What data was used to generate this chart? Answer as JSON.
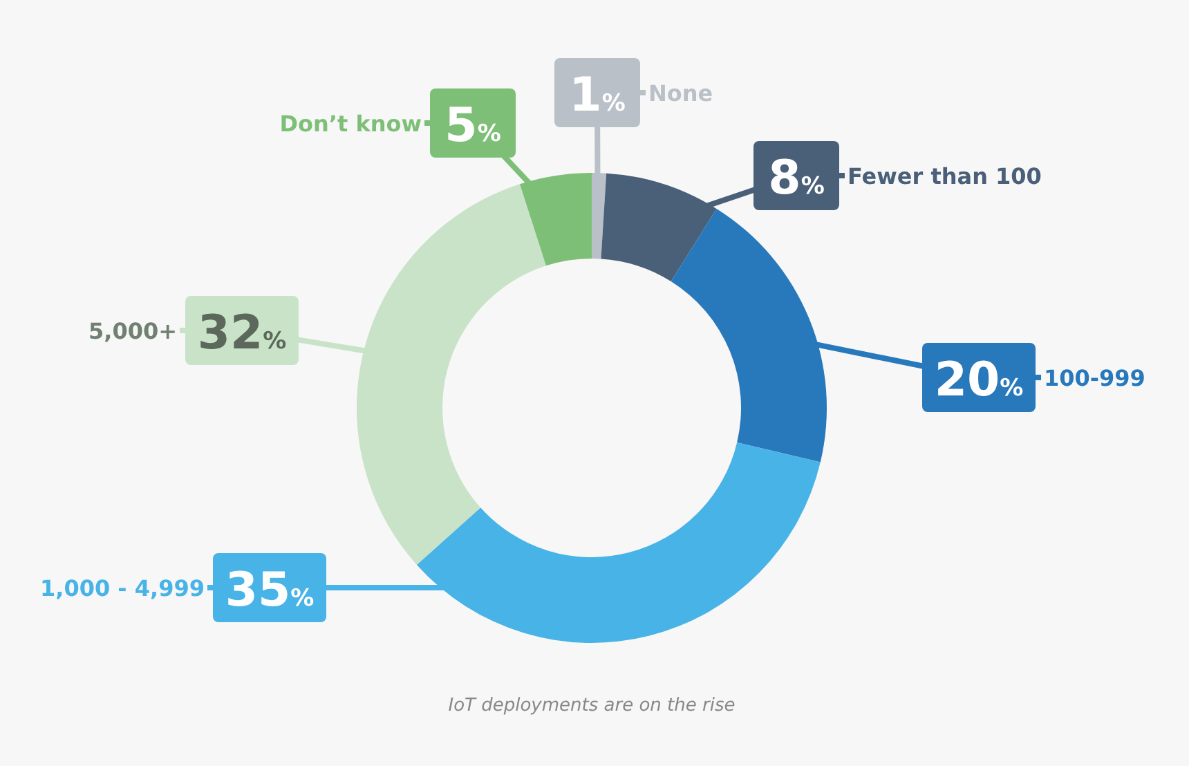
{
  "chart_data": {
    "type": "donut",
    "categories": [
      "None",
      "Fewer than 100",
      "100-999",
      "1,000 - 4,999",
      "5,000+",
      "Don’t know"
    ],
    "values": [
      1,
      8,
      20,
      35,
      32,
      5
    ],
    "colors": [
      "#b9c0c7",
      "#4a5f78",
      "#2878bc",
      "#48b3e6",
      "#c8e3c8",
      "#7dbf77"
    ],
    "value_labels": [
      "1%",
      "8%",
      "20%",
      "35%",
      "32%",
      "5%"
    ],
    "legend": false,
    "annotations": [
      "IoT deployments are on the rise"
    ]
  }
}
